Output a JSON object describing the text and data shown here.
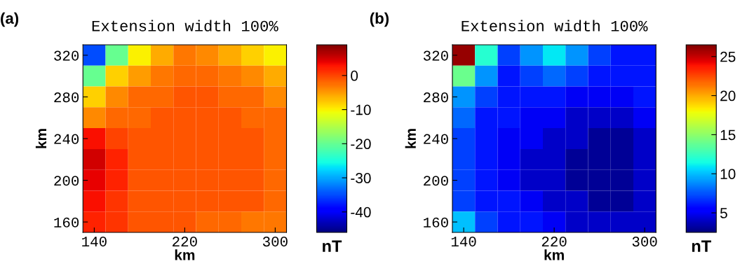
{
  "chart_data": [
    {
      "type": "heatmap",
      "title": "Extension width 100%",
      "xlabel": "km",
      "ylabel": "km",
      "clabel": "nT",
      "annotations": [
        "(a)"
      ],
      "categories": [
        "140",
        null,
        null,
        null,
        "220",
        null,
        null,
        null,
        "300"
      ],
      "y_categories": [
        "320",
        null,
        "280",
        null,
        "240",
        null,
        "200",
        null,
        "160"
      ],
      "cells": [
        [
          -35,
          -20,
          -10,
          -6,
          -3,
          -4,
          -6,
          -8,
          -10
        ],
        [
          -20,
          -8,
          -5,
          -3,
          -2,
          -2,
          -3,
          -4,
          -6
        ],
        [
          -8,
          -4,
          -2,
          -2,
          -1,
          -1,
          -2,
          -2,
          -4
        ],
        [
          -4,
          -2,
          -2,
          -1,
          -1,
          -1,
          -1,
          -2,
          -2
        ],
        [
          3,
          0,
          -1,
          -1,
          -1,
          -1,
          -1,
          -1,
          -2
        ],
        [
          5,
          2,
          -1,
          -1,
          -1,
          -1,
          -1,
          -1,
          -2
        ],
        [
          4,
          2,
          -1,
          -1,
          -1,
          -1,
          -1,
          -1,
          -2
        ],
        [
          3,
          1,
          -1,
          -1,
          -1,
          -1,
          -1,
          -1,
          -2
        ],
        [
          2,
          1,
          -1,
          -1,
          -1,
          -2,
          -2,
          -3,
          -3
        ]
      ],
      "clim": [
        -46,
        9
      ],
      "cticks": [
        0,
        -10,
        -20,
        -30,
        -40
      ]
    },
    {
      "type": "heatmap",
      "title": "Extension width 100%",
      "xlabel": "km",
      "ylabel": "km",
      "clabel": "nT",
      "annotations": [
        "(b)"
      ],
      "categories": [
        "140",
        null,
        null,
        null,
        "220",
        null,
        null,
        null,
        "300"
      ],
      "y_categories": [
        "320",
        null,
        "280",
        null,
        "240",
        null,
        "200",
        null,
        "160"
      ],
      "cells": [
        [
          26,
          12,
          7,
          9,
          11,
          9,
          7,
          6,
          6
        ],
        [
          14,
          9,
          6,
          7,
          8,
          7,
          6,
          6,
          6
        ],
        [
          9,
          7,
          6,
          6,
          6,
          5,
          5,
          5,
          6
        ],
        [
          8,
          6,
          6,
          5,
          5,
          4,
          4,
          4,
          5
        ],
        [
          7,
          6,
          5,
          5,
          4,
          4,
          3,
          3,
          4
        ],
        [
          7,
          6,
          5,
          4,
          4,
          3,
          3,
          3,
          4
        ],
        [
          7,
          6,
          5,
          4,
          4,
          3,
          3,
          3,
          4
        ],
        [
          7,
          6,
          6,
          5,
          4,
          4,
          3,
          3,
          4
        ],
        [
          10,
          7,
          6,
          6,
          5,
          4,
          4,
          4,
          4
        ]
      ],
      "clim": [
        2.5,
        26.5
      ],
      "cticks": [
        5,
        10,
        15,
        20,
        25
      ]
    }
  ]
}
